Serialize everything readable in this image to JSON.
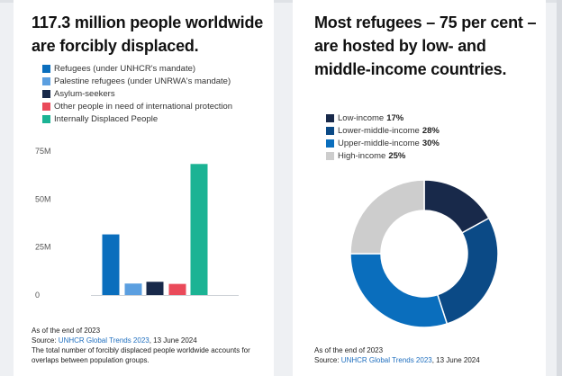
{
  "left_card": {
    "title": "117.3 million people worldwide are forcibly displaced.",
    "footer": {
      "line1": "As of the end of 2023",
      "source_prefix": "Source: ",
      "source_link": "UNHCR Global Trends 2023",
      "source_date": ", 13 June 2024",
      "note": "The total number of forcibly displaced people worldwide accounts for overlaps between population groups."
    }
  },
  "right_card": {
    "title": "Most refugees – 75 per cent – are hosted by low- and middle-income countries.",
    "footer": {
      "line1": "As of the end of 2023",
      "source_prefix": "Source: ",
      "source_link": "UNHCR Global Trends 2023",
      "source_date": ", 13 June 2024"
    }
  },
  "chart_data": [
    {
      "type": "bar",
      "categories": [
        "Refugees (under UNHCR's mandate)",
        "Palestine refugees (under UNRWA's mandate)",
        "Asylum-seekers",
        "Other people in need of international protection",
        "Internally Displaced People"
      ],
      "values": [
        31.6,
        6.0,
        6.9,
        5.8,
        68.3
      ],
      "colors": [
        "#0a6ebd",
        "#5b9fe0",
        "#18294a",
        "#ea4a5a",
        "#1bb394"
      ],
      "yticks": [
        "0",
        "25M",
        "50M",
        "75M"
      ],
      "ytick_values": [
        0,
        25,
        50,
        75
      ],
      "ylim": [
        0,
        75
      ],
      "legend": "top-left",
      "grid": false
    },
    {
      "type": "pie",
      "donut": true,
      "labels": [
        "Low-income",
        "Lower-middle-income",
        "Upper-middle-income",
        "High-income"
      ],
      "values": [
        17,
        28,
        30,
        25
      ],
      "value_labels": [
        "17%",
        "28%",
        "30%",
        "25%"
      ],
      "colors": [
        "#18294a",
        "#0b4a86",
        "#0a6ebd",
        "#cdcdcd"
      ],
      "legend": "top-left"
    }
  ]
}
